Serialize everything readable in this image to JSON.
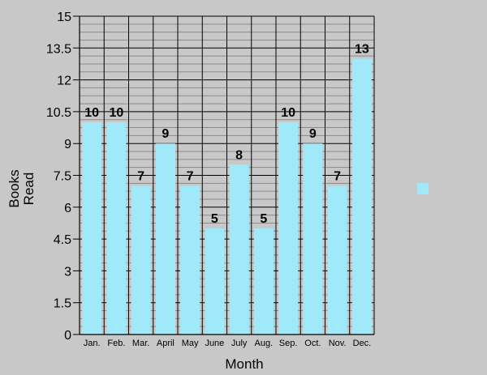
{
  "chart_data": {
    "type": "bar",
    "title": "",
    "xlabel": "Month",
    "ylabel_lines": [
      "Books",
      "Read"
    ],
    "categories": [
      "Jan.",
      "Feb.",
      "Mar.",
      "April",
      "May",
      "June",
      "July",
      "Aug.",
      "Sep.",
      "Oct.",
      "Nov.",
      "Dec."
    ],
    "values": [
      10,
      10,
      7,
      9,
      7,
      5,
      8,
      5,
      10,
      9,
      7,
      13
    ],
    "ylim": [
      0,
      15
    ],
    "yticks": [
      "0",
      "1.5",
      "3",
      "4.5",
      "6",
      "7.5",
      "9",
      "10.5",
      "12",
      "13.5",
      "15"
    ],
    "grid": true,
    "legend": {
      "position": "right",
      "entries": [
        ""
      ]
    },
    "colors": {
      "bar": "#9fe9fb",
      "background": "#c8c8c8",
      "grid": "#000000"
    }
  }
}
